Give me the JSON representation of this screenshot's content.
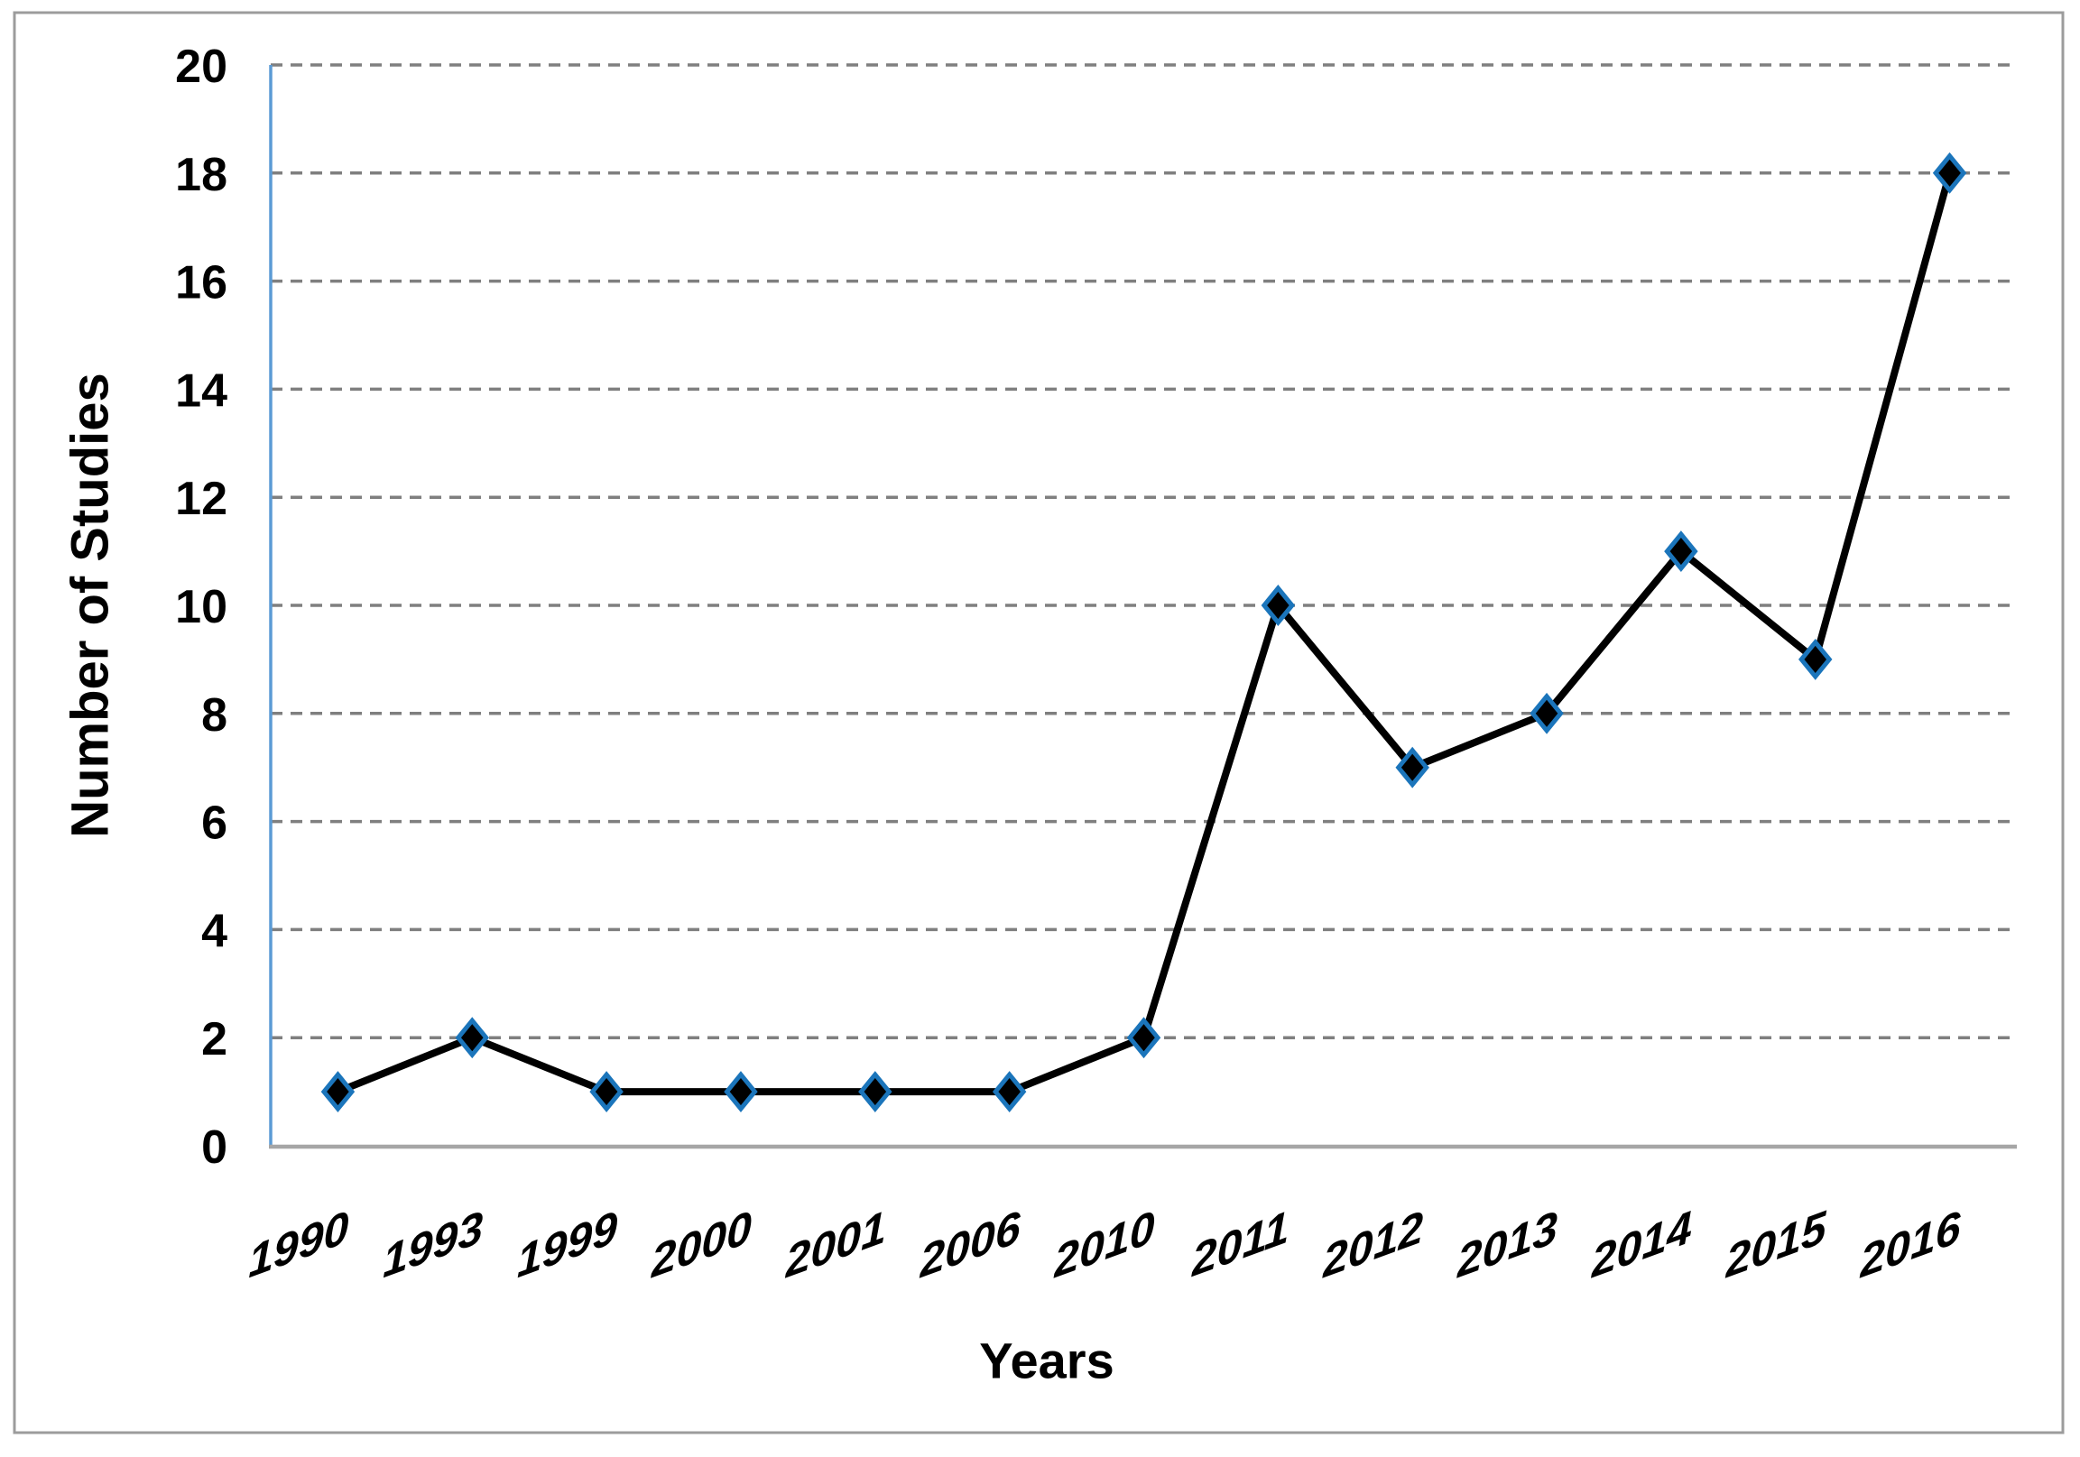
{
  "chart_data": {
    "type": "line",
    "title": "",
    "xlabel": "Years",
    "ylabel": "Number of Studies",
    "categories": [
      "1990",
      "1993",
      "1999",
      "2000",
      "2001",
      "2006",
      "2010",
      "2011",
      "2012",
      "2013",
      "2014",
      "2015",
      "2016"
    ],
    "series": [
      {
        "name": "Number of Studies",
        "values": [
          1,
          2,
          1,
          1,
          1,
          1,
          2,
          10,
          7,
          8,
          11,
          9,
          18
        ]
      }
    ],
    "ylim": [
      0,
      20
    ],
    "yticks": [
      0,
      2,
      4,
      6,
      8,
      10,
      12,
      14,
      16,
      18,
      20
    ],
    "grid": "horizontal-dashed",
    "legend_position": "none",
    "marker_shape": "diamond",
    "colors": {
      "series_line": "#000000",
      "marker_fill": "#000000",
      "marker_stroke": "#1B75BB",
      "gridline": "#7F7F7F",
      "y_axis_line": "#5B9BD5",
      "x_axis_line": "#A6A6A6",
      "figure_border": "#9C9C9C",
      "text": "#000000",
      "background": "#FFFFFF"
    }
  }
}
